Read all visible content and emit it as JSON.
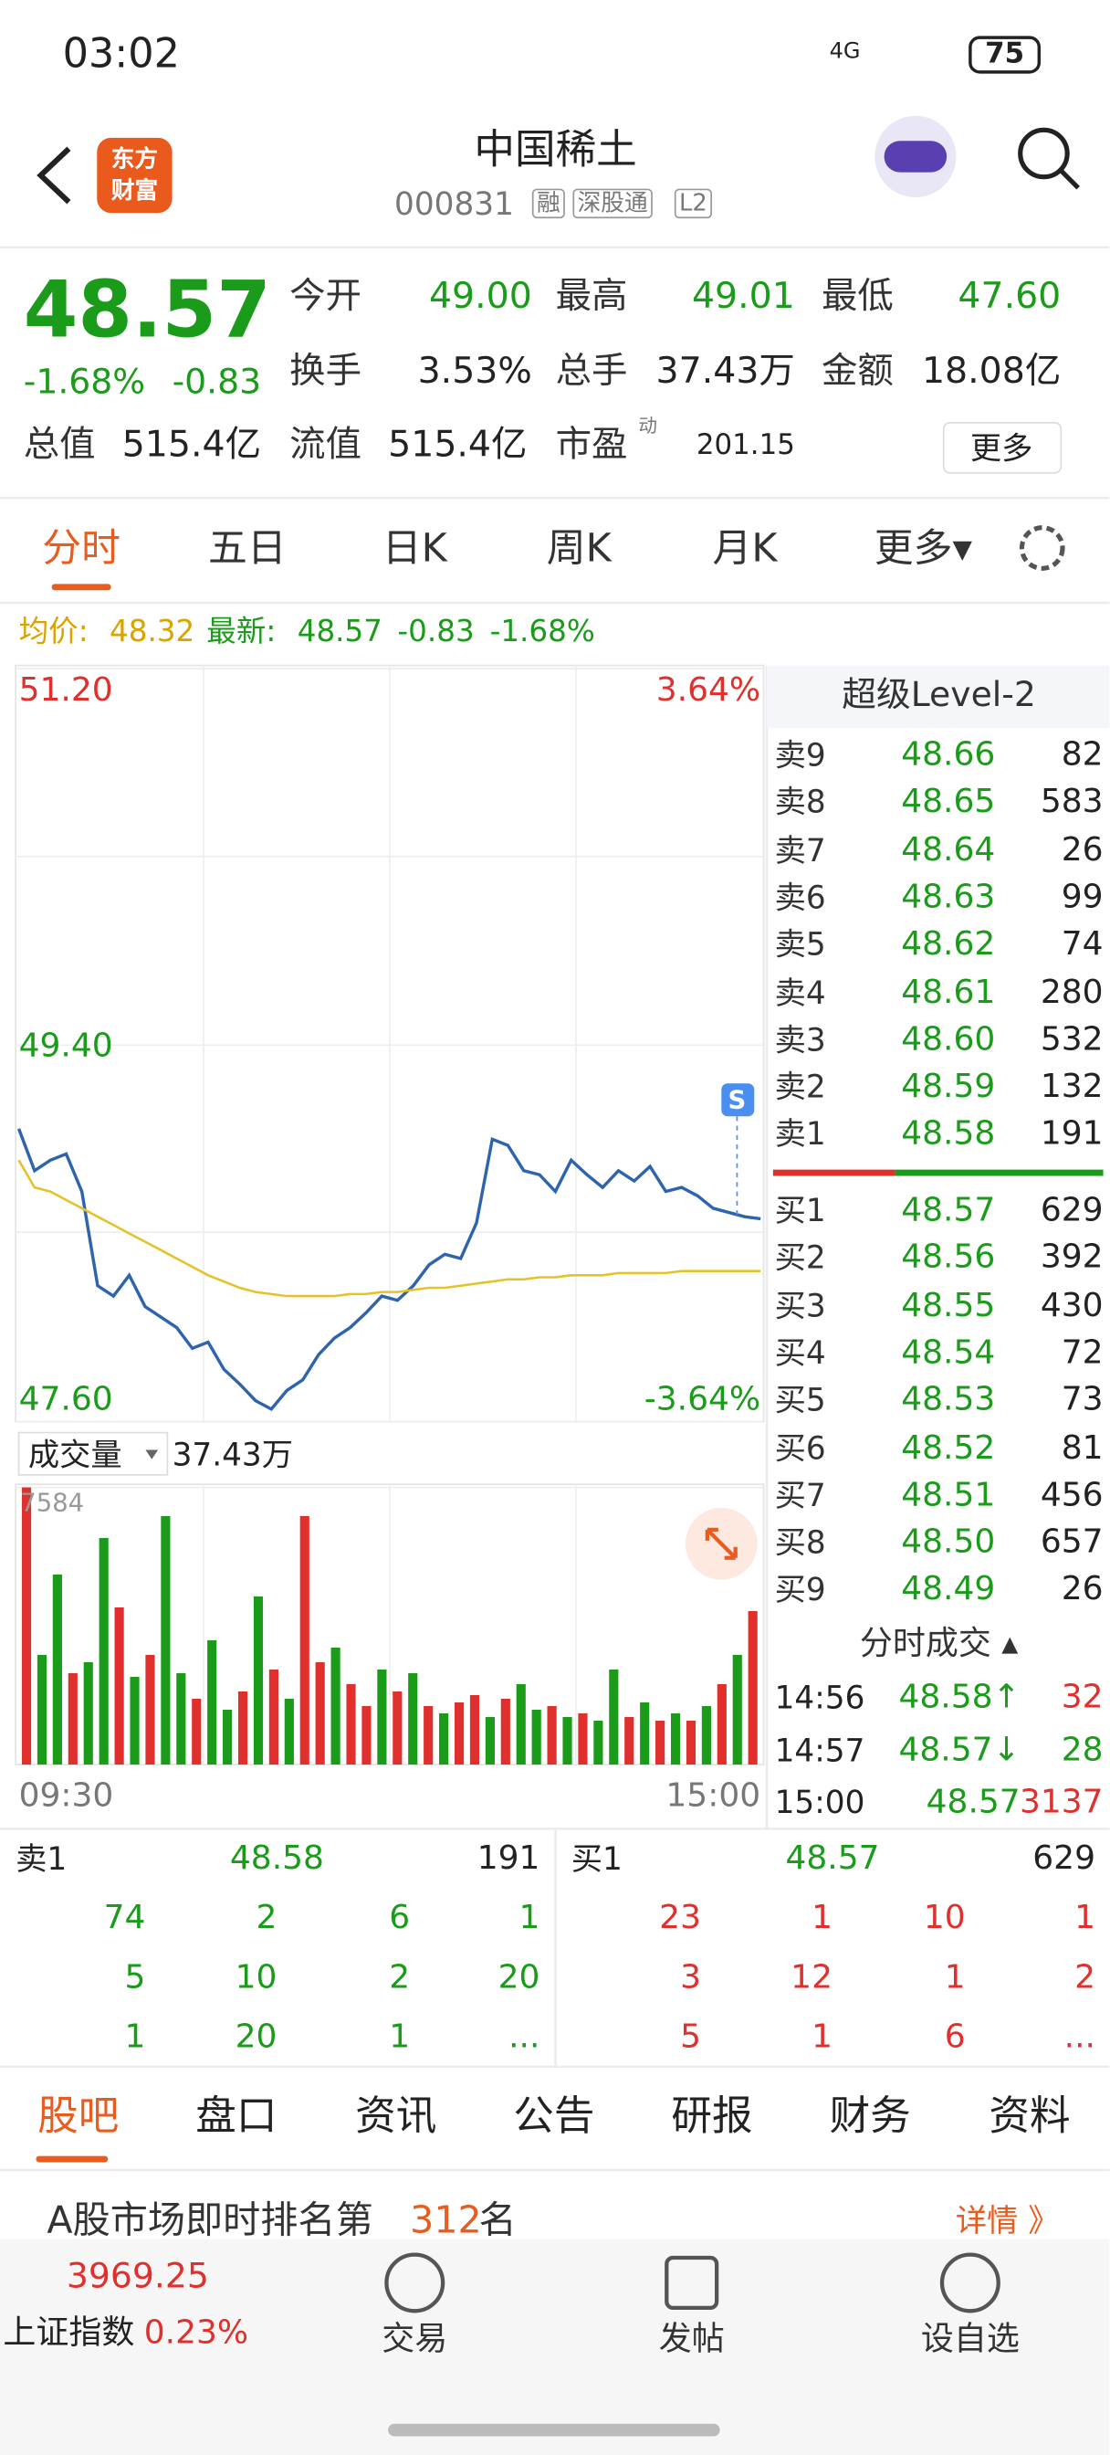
{
  "status_bar": {
    "time": "03:02",
    "network": "4G",
    "battery": "75"
  },
  "header": {
    "title": "中国稀土",
    "code": "000831",
    "tags": [
      "融",
      "深股通",
      "L2"
    ],
    "logo": [
      "东方",
      "财富"
    ]
  },
  "quote": {
    "price": "48.57",
    "change_pct": "-1.68%",
    "change": "-0.83",
    "stats": [
      {
        "label": "今开",
        "value": "49.00"
      },
      {
        "label": "最高",
        "value": "49.01"
      },
      {
        "label": "最低",
        "value": "47.60"
      },
      {
        "label": "换手",
        "value": "3.53%"
      },
      {
        "label": "总手",
        "value": "37.43万"
      },
      {
        "label": "金额",
        "value": "18.08亿"
      },
      {
        "label": "总值",
        "value": "515.4亿"
      },
      {
        "label": "流值",
        "value": "515.4亿"
      },
      {
        "label": "市盈",
        "sup": "动",
        "value": "201.15"
      }
    ],
    "more": "更多"
  },
  "tabs": {
    "items": [
      "分时",
      "五日",
      "日K",
      "周K",
      "月K",
      "更多▾"
    ]
  },
  "info_line": {
    "avg_label": "均价:",
    "avg": "48.32",
    "latest_label": "最新:",
    "latest": "48.57",
    "change": "-0.83",
    "change_pct": "-1.68%"
  },
  "chart_data": [
    {
      "type": "line",
      "ylim": [
        47.6,
        51.2
      ],
      "yticks": [
        {
          "value": 51.2,
          "label": "51.20"
        },
        {
          "value": 49.4,
          "label": "49.40"
        },
        {
          "value": 47.6,
          "label": "47.60"
        }
      ],
      "pct_labels": [
        "3.64%",
        "-3.64%"
      ],
      "markers": [
        "S"
      ],
      "series": [
        {
          "name": "价格",
          "color": "#2e64ad",
          "values": [
            49.0,
            48.8,
            48.85,
            48.88,
            48.7,
            48.25,
            48.2,
            48.3,
            48.15,
            48.1,
            48.05,
            47.95,
            47.98,
            47.85,
            47.78,
            47.7,
            47.66,
            47.75,
            47.8,
            47.92,
            48.0,
            48.05,
            48.12,
            48.2,
            48.18,
            48.25,
            48.35,
            48.4,
            48.38,
            48.55,
            48.95,
            48.92,
            48.8,
            48.78,
            48.7,
            48.85,
            48.78,
            48.72,
            48.8,
            48.75,
            48.82,
            48.7,
            48.72,
            48.68,
            48.62,
            48.6,
            48.58,
            48.57
          ]
        },
        {
          "name": "均价",
          "color": "#e6c229",
          "values": [
            48.85,
            48.72,
            48.7,
            48.66,
            48.62,
            48.58,
            48.54,
            48.5,
            48.46,
            48.42,
            48.38,
            48.34,
            48.3,
            48.27,
            48.24,
            48.22,
            48.21,
            48.2,
            48.2,
            48.2,
            48.2,
            48.21,
            48.21,
            48.22,
            48.22,
            48.23,
            48.24,
            48.24,
            48.25,
            48.26,
            48.27,
            48.28,
            48.28,
            48.29,
            48.29,
            48.3,
            48.3,
            48.3,
            48.31,
            48.31,
            48.31,
            48.31,
            48.32,
            48.32,
            48.32,
            48.32,
            48.32,
            48.32
          ]
        }
      ]
    },
    {
      "type": "bar",
      "title": "成交量",
      "total": "37.43万",
      "ylim": [
        0,
        7584
      ],
      "yticks": [
        {
          "value": 7584,
          "label": "7584"
        }
      ],
      "xlabels": [
        "09:30",
        "15:00"
      ],
      "values": [
        7584,
        3000,
        5200,
        2500,
        2800,
        6200,
        4300,
        2400,
        3000,
        6800,
        2500,
        1800,
        3400,
        1500,
        2000,
        4600,
        2600,
        1800,
        6800,
        2800,
        3200,
        2200,
        1600,
        2600,
        2000,
        2500,
        1600,
        1400,
        1700,
        1900,
        1300,
        1800,
        2200,
        1500,
        1600,
        1300,
        1400,
        1200,
        2600,
        1300,
        1700,
        1200,
        1400,
        1200,
        1600,
        2200,
        3000,
        4200
      ],
      "colors": [
        "#e0302d",
        "#1a9b1a",
        "#1a9b1a",
        "#e0302d",
        "#1a9b1a",
        "#1a9b1a",
        "#e0302d",
        "#1a9b1a",
        "#e0302d",
        "#1a9b1a",
        "#1a9b1a",
        "#e0302d",
        "#1a9b1a",
        "#1a9b1a",
        "#e0302d",
        "#1a9b1a",
        "#e0302d",
        "#1a9b1a",
        "#e0302d",
        "#e0302d",
        "#1a9b1a",
        "#e0302d",
        "#e0302d",
        "#1a9b1a",
        "#e0302d",
        "#1a9b1a",
        "#e0302d",
        "#1a9b1a",
        "#e0302d",
        "#e0302d",
        "#1a9b1a",
        "#e0302d",
        "#1a9b1a",
        "#1a9b1a",
        "#e0302d",
        "#1a9b1a",
        "#e0302d",
        "#1a9b1a",
        "#1a9b1a",
        "#e0302d",
        "#1a9b1a",
        "#e0302d",
        "#1a9b1a",
        "#e0302d",
        "#1a9b1a",
        "#e0302d",
        "#1a9b1a",
        "#e0302d"
      ]
    }
  ],
  "level2": {
    "title": "超级Level-2",
    "asks": [
      {
        "label": "卖9",
        "price": "48.66",
        "vol": "82"
      },
      {
        "label": "卖8",
        "price": "48.65",
        "vol": "583"
      },
      {
        "label": "卖7",
        "price": "48.64",
        "vol": "26"
      },
      {
        "label": "卖6",
        "price": "48.63",
        "vol": "99"
      },
      {
        "label": "卖5",
        "price": "48.62",
        "vol": "74"
      },
      {
        "label": "卖4",
        "price": "48.61",
        "vol": "280"
      },
      {
        "label": "卖3",
        "price": "48.60",
        "vol": "532"
      },
      {
        "label": "卖2",
        "price": "48.59",
        "vol": "132"
      },
      {
        "label": "卖1",
        "price": "48.58",
        "vol": "191"
      }
    ],
    "bids": [
      {
        "label": "买1",
        "price": "48.57",
        "vol": "629"
      },
      {
        "label": "买2",
        "price": "48.56",
        "vol": "392"
      },
      {
        "label": "买3",
        "price": "48.55",
        "vol": "430"
      },
      {
        "label": "买4",
        "price": "48.54",
        "vol": "72"
      },
      {
        "label": "买5",
        "price": "48.53",
        "vol": "73"
      },
      {
        "label": "买6",
        "price": "48.52",
        "vol": "81"
      },
      {
        "label": "买7",
        "price": "48.51",
        "vol": "456"
      },
      {
        "label": "买8",
        "price": "48.50",
        "vol": "657"
      },
      {
        "label": "买9",
        "price": "48.49",
        "vol": "26"
      }
    ]
  },
  "trades": {
    "title": "分时成交 ▴",
    "rows": [
      {
        "time": "14:56",
        "price": "48.58↑",
        "vol": "32"
      },
      {
        "time": "14:57",
        "price": "48.57↓",
        "vol": "28"
      },
      {
        "time": "15:00",
        "price": "48.57",
        "vol": "3137"
      }
    ]
  },
  "queue": {
    "ask": {
      "label": "卖1",
      "price": "48.58",
      "vol": "191",
      "orders": [
        "74",
        "2",
        "6",
        "1",
        "5",
        "10",
        "2",
        "20",
        "1",
        "20",
        "1",
        "..."
      ]
    },
    "bid": {
      "label": "买1",
      "price": "48.57",
      "vol": "629",
      "orders": [
        "23",
        "1",
        "10",
        "1",
        "3",
        "12",
        "1",
        "2",
        "5",
        "1",
        "6",
        "..."
      ]
    }
  },
  "bottom_tabs": {
    "items": [
      "股吧",
      "盘口",
      "资讯",
      "公告",
      "研报",
      "财务",
      "资料"
    ]
  },
  "ranking": {
    "prefix": "A股市场即时排名第",
    "rank": "312",
    "suffix": "名",
    "link": "详情 》"
  },
  "footer": {
    "index_value": "3969.25",
    "index_name": "上证指数",
    "index_change": "0.23%",
    "actions": [
      "交易",
      "发帖",
      "设自选"
    ]
  }
}
